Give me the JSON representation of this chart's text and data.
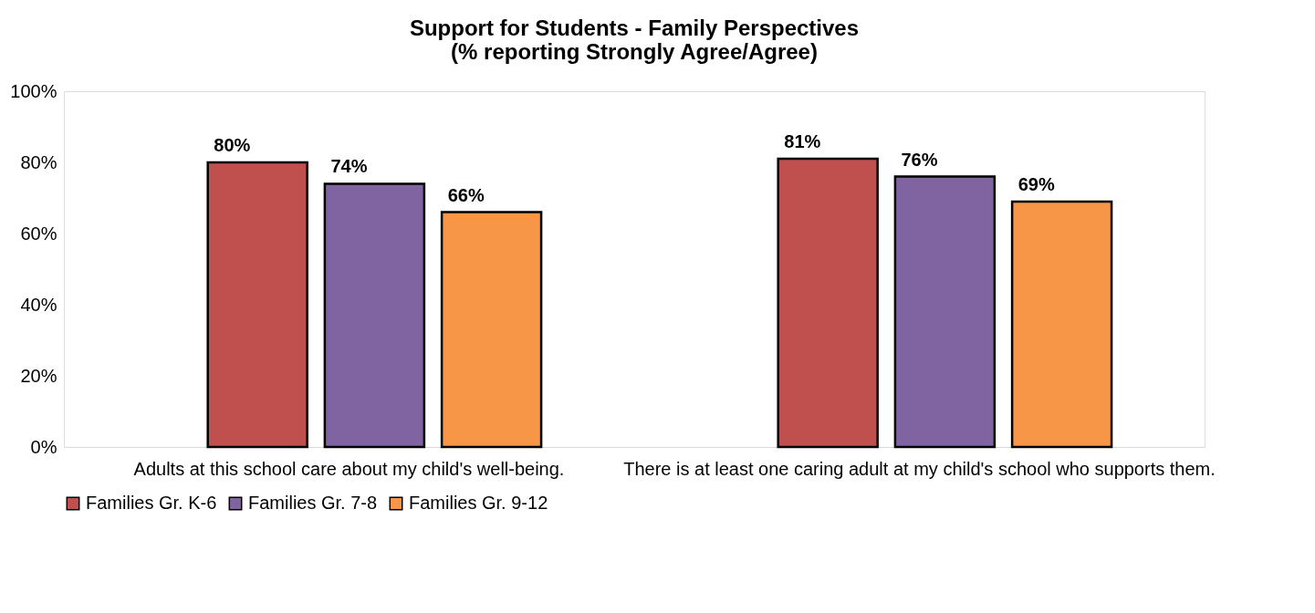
{
  "chart_data": {
    "type": "bar",
    "title": "Support for Students - Family Perspectives\n(% reporting Strongly Agree/Agree)",
    "categories": [
      "Adults at this school care about my child's well-being.",
      "There is at least one caring adult at my child's school who supports them."
    ],
    "series": [
      {
        "name": "Families Gr. K-6",
        "color": "#c0504d",
        "values": [
          80,
          81
        ],
        "value_labels": [
          "80%",
          "81%"
        ]
      },
      {
        "name": "Families Gr. 7-8",
        "color": "#8064a2",
        "values": [
          74,
          76
        ],
        "value_labels": [
          "74%",
          "76%"
        ]
      },
      {
        "name": "Families Gr. 9-12",
        "color": "#f79646",
        "values": [
          66,
          69
        ],
        "value_labels": [
          "66%",
          "69%"
        ]
      }
    ],
    "ylim": [
      0,
      100
    ],
    "yticks": [
      {
        "value": 0,
        "label": "0%"
      },
      {
        "value": 20,
        "label": "20%"
      },
      {
        "value": 40,
        "label": "40%"
      },
      {
        "value": 60,
        "label": "60%"
      },
      {
        "value": 80,
        "label": "80%"
      },
      {
        "value": 100,
        "label": "100%"
      }
    ],
    "grid": false,
    "legend": "bottom"
  }
}
